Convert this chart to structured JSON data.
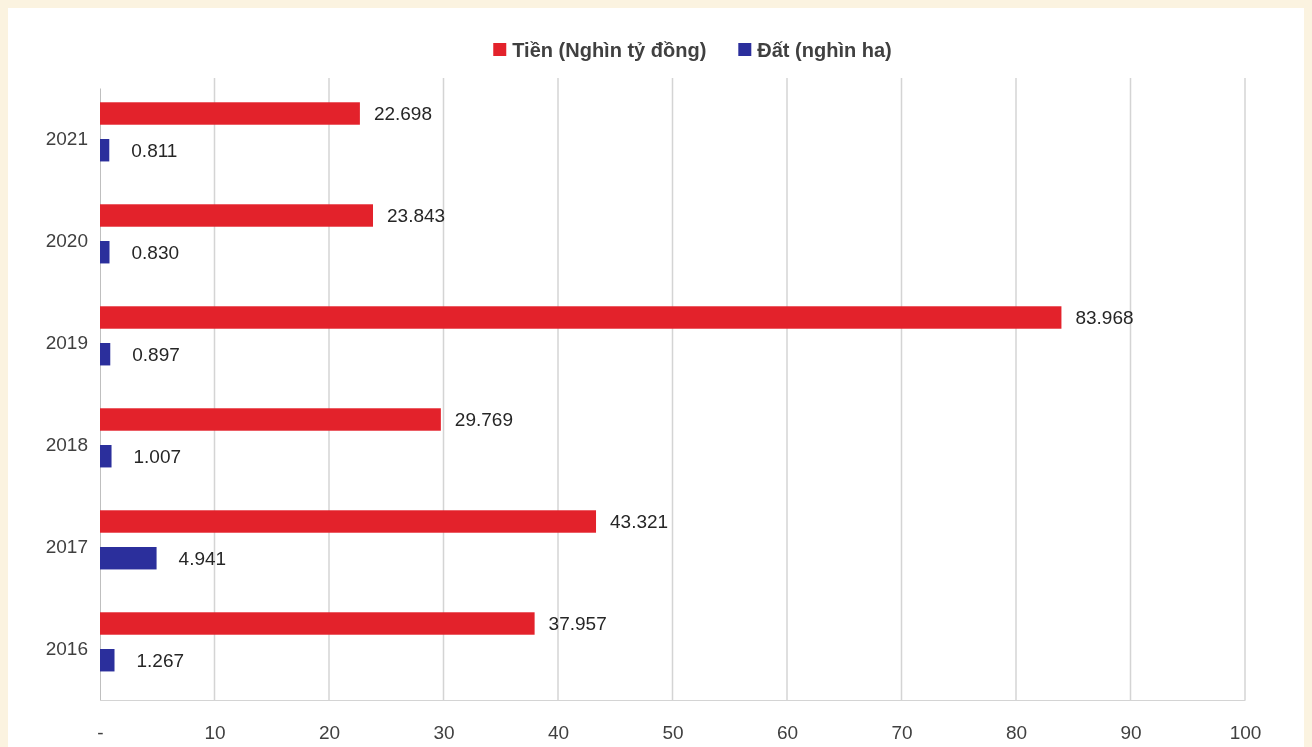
{
  "chart_data": {
    "type": "bar",
    "orientation": "horizontal",
    "categories": [
      "2021",
      "2020",
      "2019",
      "2018",
      "2017",
      "2016"
    ],
    "series": [
      {
        "name": "Tiền (Nghìn tỷ đồng)",
        "color": "#e3222b",
        "values": [
          22.698,
          23.843,
          83.968,
          29.769,
          43.321,
          37.957
        ],
        "value_labels": [
          "22.698",
          "23.843",
          "83.968",
          "29.769",
          "43.321",
          "37.957"
        ]
      },
      {
        "name": "Đất (nghìn ha)",
        "color": "#2b2f9c",
        "values": [
          0.811,
          0.83,
          0.897,
          1.007,
          4.941,
          1.267
        ],
        "value_labels": [
          "0.811",
          "0.830",
          "0.897",
          "1.007",
          "4.941",
          "1.267"
        ]
      }
    ],
    "xlim": [
      0,
      100
    ],
    "xticks": [
      {
        "value": 0,
        "label": "-"
      },
      10,
      20,
      30,
      40,
      50,
      60,
      70,
      80,
      90,
      100
    ],
    "grid": "x",
    "legend": "top"
  }
}
